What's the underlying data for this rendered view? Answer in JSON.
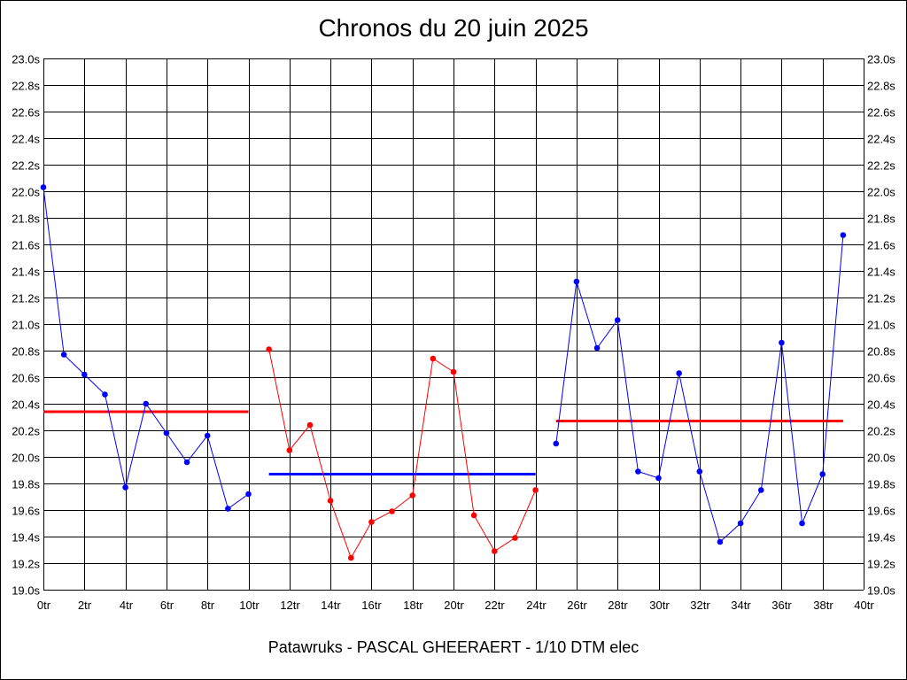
{
  "chart_data": {
    "type": "line",
    "title": "Chronos du 20 juin 2025",
    "footer": "Patawruks - PASCAL GHEERAERT - 1/10 DTM elec",
    "xlabel": "",
    "ylabel": "",
    "xlim": [
      0,
      40
    ],
    "ylim": [
      19.0,
      23.0
    ],
    "x_ticks": [
      "0tr",
      "2tr",
      "4tr",
      "6tr",
      "8tr",
      "10tr",
      "12tr",
      "14tr",
      "16tr",
      "18tr",
      "20tr",
      "22tr",
      "24tr",
      "26tr",
      "28tr",
      "30tr",
      "32tr",
      "34tr",
      "36tr",
      "38tr",
      "40tr"
    ],
    "y_ticks": [
      "19.0s",
      "19.2s",
      "19.4s",
      "19.6s",
      "19.8s",
      "20.0s",
      "20.2s",
      "20.4s",
      "20.6s",
      "20.8s",
      "21.0s",
      "21.2s",
      "21.4s",
      "21.6s",
      "21.8s",
      "22.0s",
      "22.2s",
      "22.4s",
      "22.6s",
      "22.8s",
      "23.0s"
    ],
    "grid": true,
    "series": [
      {
        "color": "#0000ff",
        "x": [
          0,
          1,
          2,
          3,
          4,
          5,
          6,
          7,
          8,
          9,
          10
        ],
        "y": [
          22.03,
          20.77,
          20.62,
          20.47,
          19.77,
          20.4,
          20.18,
          19.96,
          20.16,
          19.61,
          19.72
        ]
      },
      {
        "color": "#ff0000",
        "x": [
          11,
          12,
          13,
          14,
          15,
          16,
          17,
          18,
          19,
          20,
          21,
          22,
          23,
          24
        ],
        "y": [
          20.81,
          20.05,
          20.24,
          19.67,
          19.24,
          19.51,
          19.59,
          19.71,
          20.74,
          20.64,
          19.56,
          19.29,
          19.39,
          19.75
        ]
      },
      {
        "color": "#0000ff",
        "x": [
          25,
          26,
          27,
          28,
          29,
          30,
          31,
          32,
          33,
          34,
          35,
          36,
          37,
          38,
          39
        ],
        "y": [
          20.1,
          21.32,
          20.82,
          21.03,
          19.89,
          19.84,
          20.63,
          19.89,
          19.36,
          19.5,
          19.75,
          20.86,
          19.5,
          19.87,
          21.67
        ]
      }
    ],
    "averages": [
      {
        "color": "#ff0000",
        "x_start": 0,
        "x_end": 10,
        "y": 20.34
      },
      {
        "color": "#0000ff",
        "x_start": 11,
        "x_end": 24,
        "y": 19.87
      },
      {
        "color": "#ff0000",
        "x_start": 25,
        "x_end": 39,
        "y": 20.27
      }
    ]
  }
}
